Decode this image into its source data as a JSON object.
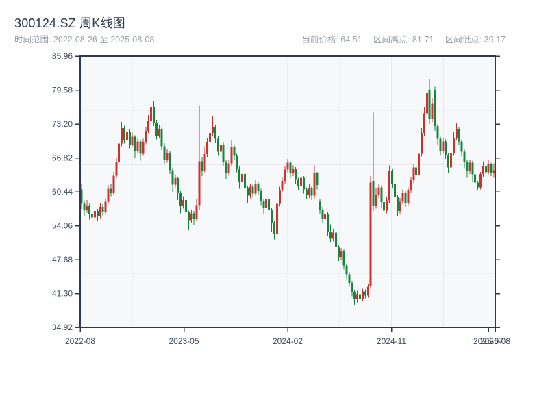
{
  "header": {
    "title": "300124.SZ 周K线图",
    "subtitle_left": "时间范围: 2022-08-26 至 2025-08-08",
    "stats": [
      "当前价格: 64.51",
      "区间高点: 81.71",
      "区间低点: 39.17"
    ]
  },
  "chart_data": {
    "type": "candlestick",
    "title": "300124.SZ 周K线图",
    "symbol": "300124.SZ",
    "interval": "weekly",
    "x_range": [
      "2022-08-26",
      "2025-08-08"
    ],
    "current_price": 64.51,
    "range_high": 81.71,
    "range_low": 39.17,
    "ylim": [
      34.92,
      85.96
    ],
    "y_ticks": [
      85.96,
      79.58,
      73.2,
      66.82,
      60.44,
      54.06,
      47.68,
      41.3,
      34.92
    ],
    "x_ticks": [
      {
        "label": "2022-08",
        "pos": 0
      },
      {
        "label": "2023-05",
        "pos": 0.25
      },
      {
        "label": "2024-02",
        "pos": 0.5
      },
      {
        "label": "2024-11",
        "pos": 0.75
      },
      {
        "label": "2025-07",
        "pos": 0.9835
      },
      {
        "label": "2025-08",
        "pos": 1.0
      }
    ],
    "grid": {
      "h_fractions": [
        0.2,
        0.4,
        0.6,
        0.8
      ],
      "v_fractions": [
        0.125,
        0.25,
        0.375,
        0.5,
        0.625,
        0.75,
        0.875
      ]
    },
    "colors": {
      "up": "#d0312d",
      "down": "#15873d",
      "axis": "#2c3a50",
      "tick_text": "#3e4a5e",
      "grid": "#e7e9ed",
      "plot_bg": "#f7f8fa"
    },
    "candles_format": [
      "open",
      "high",
      "low",
      "close"
    ],
    "candles": [
      [
        60.9,
        62.0,
        57.2,
        58.2
      ],
      [
        58.2,
        58.8,
        55.9,
        57.0
      ],
      [
        57.0,
        58.9,
        56.5,
        57.8
      ],
      [
        57.8,
        58.2,
        55.2,
        56.2
      ],
      [
        56.2,
        56.8,
        54.6,
        55.6
      ],
      [
        55.6,
        57.4,
        55.1,
        56.8
      ],
      [
        56.8,
        57.2,
        54.9,
        55.9
      ],
      [
        55.9,
        58.3,
        55.5,
        57.6
      ],
      [
        57.6,
        58.1,
        56.0,
        56.7
      ],
      [
        56.7,
        59.2,
        56.2,
        58.6
      ],
      [
        58.6,
        61.7,
        58.2,
        61.0
      ],
      [
        61.0,
        61.9,
        59.6,
        60.2
      ],
      [
        60.2,
        64.2,
        59.8,
        63.5
      ],
      [
        63.5,
        66.8,
        63.0,
        66.0
      ],
      [
        66.0,
        70.3,
        65.6,
        69.5
      ],
      [
        69.5,
        73.6,
        69.0,
        72.4
      ],
      [
        72.4,
        72.9,
        69.5,
        70.2
      ],
      [
        70.2,
        73.4,
        69.8,
        71.8
      ],
      [
        71.8,
        72.2,
        68.6,
        69.3
      ],
      [
        69.3,
        71.6,
        68.8,
        70.8
      ],
      [
        70.8,
        71.1,
        66.9,
        68.2
      ],
      [
        68.2,
        70.6,
        67.7,
        69.9
      ],
      [
        69.9,
        70.2,
        66.3,
        67.6
      ],
      [
        67.6,
        70.4,
        67.2,
        69.8
      ],
      [
        69.8,
        72.6,
        69.4,
        71.9
      ],
      [
        71.9,
        74.9,
        71.5,
        73.8
      ],
      [
        73.8,
        78.0,
        73.4,
        76.4
      ],
      [
        76.4,
        77.6,
        72.8,
        73.4
      ],
      [
        73.4,
        74.0,
        70.3,
        71.0
      ],
      [
        71.0,
        73.0,
        70.5,
        72.2
      ],
      [
        72.2,
        72.5,
        68.3,
        69.0
      ],
      [
        69.0,
        69.6,
        65.7,
        66.4
      ],
      [
        66.4,
        68.4,
        65.9,
        67.8
      ],
      [
        67.8,
        68.1,
        63.8,
        64.5
      ],
      [
        64.5,
        65.0,
        60.3,
        61.8
      ],
      [
        61.8,
        63.7,
        61.3,
        63.0
      ],
      [
        63.0,
        63.3,
        58.9,
        60.2
      ],
      [
        60.2,
        60.6,
        56.4,
        57.8
      ],
      [
        57.8,
        59.6,
        57.3,
        58.9
      ],
      [
        58.9,
        59.2,
        54.9,
        56.6
      ],
      [
        56.6,
        56.9,
        53.2,
        55.1
      ],
      [
        55.1,
        57.1,
        54.6,
        56.4
      ],
      [
        56.4,
        56.8,
        54.1,
        55.4
      ],
      [
        55.4,
        59.0,
        55.0,
        57.9
      ],
      [
        57.9,
        76.6,
        57.0,
        66.2
      ],
      [
        66.2,
        67.0,
        63.4,
        64.3
      ],
      [
        64.3,
        69.0,
        63.9,
        67.5
      ],
      [
        67.5,
        70.6,
        67.0,
        69.8
      ],
      [
        69.8,
        73.2,
        69.3,
        71.5
      ],
      [
        71.5,
        74.6,
        71.0,
        72.6
      ],
      [
        72.6,
        73.0,
        69.6,
        70.4
      ],
      [
        70.4,
        70.9,
        67.2,
        68.0
      ],
      [
        68.0,
        70.1,
        67.5,
        69.3
      ],
      [
        69.3,
        69.7,
        65.4,
        66.1
      ],
      [
        66.1,
        66.5,
        62.8,
        64.0
      ],
      [
        64.0,
        66.5,
        63.5,
        65.8
      ],
      [
        65.8,
        70.2,
        65.3,
        68.9
      ],
      [
        68.9,
        69.3,
        66.5,
        67.2
      ],
      [
        67.2,
        67.6,
        64.1,
        64.8
      ],
      [
        64.8,
        65.2,
        61.0,
        62.3
      ],
      [
        62.3,
        64.4,
        61.8,
        63.8
      ],
      [
        63.8,
        64.1,
        60.6,
        61.2
      ],
      [
        61.2,
        61.6,
        58.4,
        59.7
      ],
      [
        59.7,
        62.0,
        59.2,
        61.4
      ],
      [
        61.4,
        61.8,
        59.4,
        60.1
      ],
      [
        60.1,
        62.6,
        59.7,
        62.0
      ],
      [
        62.0,
        62.4,
        59.9,
        60.6
      ],
      [
        60.6,
        61.0,
        57.9,
        58.7
      ],
      [
        58.7,
        59.1,
        56.2,
        57.4
      ],
      [
        57.4,
        59.7,
        56.9,
        59.1
      ],
      [
        59.1,
        59.5,
        56.3,
        57.0
      ],
      [
        57.0,
        57.4,
        52.9,
        54.5
      ],
      [
        54.5,
        54.9,
        51.5,
        52.6
      ],
      [
        52.6,
        58.9,
        52.1,
        58.2
      ],
      [
        58.2,
        61.4,
        57.7,
        60.8
      ],
      [
        60.8,
        63.1,
        60.3,
        62.5
      ],
      [
        62.5,
        65.3,
        62.0,
        64.6
      ],
      [
        64.6,
        66.6,
        64.1,
        65.9
      ],
      [
        65.9,
        66.2,
        63.1,
        63.9
      ],
      [
        63.9,
        65.4,
        63.4,
        64.8
      ],
      [
        64.8,
        65.1,
        61.9,
        62.7
      ],
      [
        62.7,
        63.1,
        60.7,
        61.5
      ],
      [
        61.5,
        63.7,
        61.0,
        63.1
      ],
      [
        63.1,
        63.4,
        60.1,
        60.9
      ],
      [
        60.9,
        61.3,
        59.0,
        59.8
      ],
      [
        59.8,
        61.9,
        59.3,
        61.2
      ],
      [
        61.2,
        61.6,
        58.9,
        59.7
      ],
      [
        59.7,
        65.4,
        59.2,
        63.9
      ],
      [
        63.9,
        64.2,
        60.9,
        61.7
      ],
      [
        58.6,
        59.1,
        56.3,
        57.1
      ],
      [
        57.1,
        57.6,
        54.6,
        55.3
      ],
      [
        55.3,
        56.9,
        54.8,
        56.3
      ],
      [
        56.3,
        56.7,
        52.1,
        52.9
      ],
      [
        52.9,
        54.3,
        50.9,
        51.6
      ],
      [
        51.6,
        53.4,
        51.1,
        52.8
      ],
      [
        52.8,
        53.1,
        49.3,
        50.1
      ],
      [
        50.1,
        50.5,
        47.4,
        48.2
      ],
      [
        48.2,
        49.9,
        47.7,
        49.3
      ],
      [
        49.3,
        49.6,
        45.8,
        46.6
      ],
      [
        46.6,
        47.0,
        44.1,
        44.9
      ],
      [
        44.9,
        45.3,
        42.6,
        43.3
      ],
      [
        43.3,
        43.7,
        40.8,
        41.6
      ],
      [
        41.6,
        42.0,
        39.17,
        40.2
      ],
      [
        40.2,
        41.8,
        39.6,
        41.2
      ],
      [
        41.2,
        41.5,
        39.8,
        40.3
      ],
      [
        40.3,
        42.2,
        39.9,
        41.7
      ],
      [
        41.7,
        42.1,
        40.4,
        40.9
      ],
      [
        40.9,
        43.1,
        40.5,
        42.6
      ],
      [
        42.8,
        63.4,
        42.2,
        62.2
      ],
      [
        62.5,
        75.3,
        56.8,
        57.8
      ],
      [
        57.8,
        61.1,
        57.3,
        59.8
      ],
      [
        59.8,
        62.0,
        59.3,
        61.3
      ],
      [
        61.3,
        61.7,
        57.3,
        58.5
      ],
      [
        58.5,
        58.9,
        55.7,
        56.9
      ],
      [
        56.9,
        59.4,
        56.4,
        58.8
      ],
      [
        58.8,
        65.4,
        58.3,
        64.3
      ],
      [
        64.3,
        64.7,
        61.2,
        61.9
      ],
      [
        61.9,
        62.3,
        58.8,
        59.5
      ],
      [
        59.5,
        59.9,
        55.9,
        56.8
      ],
      [
        56.8,
        59.3,
        56.3,
        58.6
      ],
      [
        58.6,
        60.9,
        58.1,
        60.2
      ],
      [
        60.2,
        60.6,
        57.6,
        58.4
      ],
      [
        58.4,
        61.3,
        57.9,
        60.7
      ],
      [
        60.7,
        63.3,
        60.2,
        62.6
      ],
      [
        62.6,
        65.7,
        62.1,
        65.0
      ],
      [
        65.0,
        65.4,
        62.9,
        63.6
      ],
      [
        63.6,
        68.4,
        63.1,
        67.6
      ],
      [
        67.6,
        72.4,
        67.1,
        71.5
      ],
      [
        71.5,
        76.4,
        71.0,
        75.2
      ],
      [
        75.2,
        80.3,
        74.7,
        79.0
      ],
      [
        79.5,
        81.71,
        73.2,
        74.1
      ],
      [
        74.1,
        78.1,
        73.5,
        77.0
      ],
      [
        79.6,
        80.2,
        71.9,
        72.8
      ],
      [
        72.8,
        73.2,
        69.3,
        70.4
      ],
      [
        70.4,
        70.8,
        67.2,
        68.1
      ],
      [
        68.1,
        70.7,
        67.6,
        69.9
      ],
      [
        69.9,
        70.3,
        66.6,
        67.3
      ],
      [
        67.3,
        67.7,
        63.9,
        65.0
      ],
      [
        65.0,
        68.3,
        64.5,
        67.7
      ],
      [
        67.7,
        71.8,
        67.2,
        70.6
      ],
      [
        70.6,
        73.3,
        70.1,
        72.2
      ],
      [
        72.2,
        72.6,
        69.2,
        69.9
      ],
      [
        69.9,
        70.3,
        67.1,
        68.0
      ],
      [
        68.0,
        68.4,
        64.9,
        66.1
      ],
      [
        66.1,
        66.5,
        63.1,
        64.3
      ],
      [
        64.3,
        66.5,
        63.8,
        65.9
      ],
      [
        65.9,
        66.3,
        62.4,
        63.7
      ],
      [
        63.7,
        64.1,
        61.1,
        62.2
      ],
      [
        62.2,
        62.5,
        60.8,
        61.3
      ],
      [
        61.3,
        64.2,
        60.9,
        63.8
      ],
      [
        63.8,
        66.2,
        63.3,
        65.3
      ],
      [
        65.3,
        65.7,
        63.5,
        64.1
      ],
      [
        64.1,
        66.4,
        63.7,
        65.6
      ],
      [
        65.6,
        65.9,
        63.4,
        63.9
      ],
      [
        63.9,
        65.8,
        63.1,
        64.51
      ]
    ]
  }
}
